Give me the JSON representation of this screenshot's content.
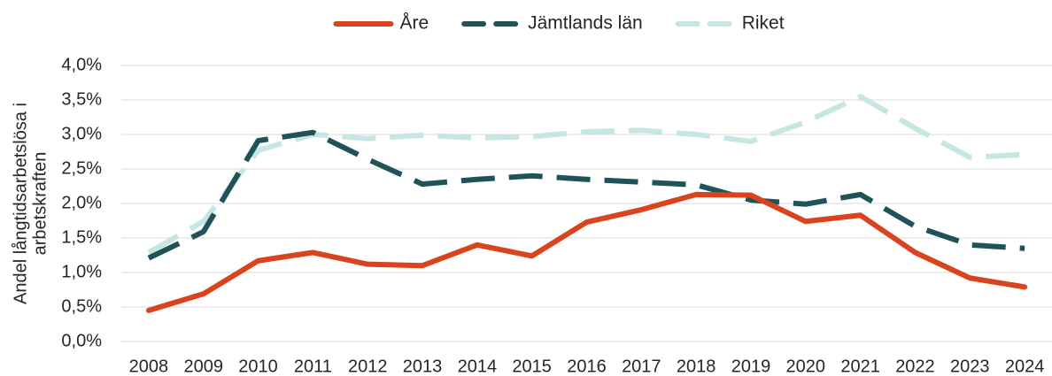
{
  "chart_data": {
    "type": "line",
    "ylabel": [
      "Andel långtidsarbetslösa i",
      "arbetskraften"
    ],
    "categories": [
      "2008",
      "2009",
      "2010",
      "2011",
      "2012",
      "2013",
      "2014",
      "2015",
      "2016",
      "2017",
      "2018",
      "2019",
      "2020",
      "2021",
      "2022",
      "2023",
      "2024"
    ],
    "series": [
      {
        "name": "Åre",
        "color": "#d9431e",
        "style": "solid",
        "values": [
          0.45,
          0.69,
          1.17,
          1.29,
          1.12,
          1.1,
          1.4,
          1.24,
          1.73,
          1.91,
          2.13,
          2.12,
          1.74,
          1.83,
          1.29,
          0.92,
          0.79
        ]
      },
      {
        "name": "Jämtlands län",
        "color": "#1f5357",
        "style": "dashed",
        "values": [
          1.21,
          1.59,
          2.91,
          3.03,
          2.64,
          2.28,
          2.35,
          2.4,
          2.35,
          2.31,
          2.27,
          2.05,
          1.99,
          2.13,
          1.67,
          1.4,
          1.35
        ]
      },
      {
        "name": "Riket",
        "color": "#c5e6e2",
        "style": "dashed",
        "values": [
          1.29,
          1.74,
          2.77,
          3.0,
          2.94,
          2.99,
          2.95,
          2.97,
          3.04,
          3.06,
          3.0,
          2.9,
          3.18,
          3.55,
          3.09,
          2.67,
          2.71
        ]
      }
    ],
    "ylim": [
      0,
      4
    ],
    "yticks": [
      {
        "value": 0,
        "label": "0,0%"
      },
      {
        "value": 0.5,
        "label": "0,5%"
      },
      {
        "value": 1,
        "label": "1,0%"
      },
      {
        "value": 1.5,
        "label": "1,5%"
      },
      {
        "value": 2,
        "label": "2,0%"
      },
      {
        "value": 2.5,
        "label": "2,5%"
      },
      {
        "value": 3,
        "label": "3,0%"
      },
      {
        "value": 3.5,
        "label": "3,5%"
      },
      {
        "value": 4,
        "label": "4,0%"
      }
    ],
    "grid": true,
    "legend": "top"
  }
}
